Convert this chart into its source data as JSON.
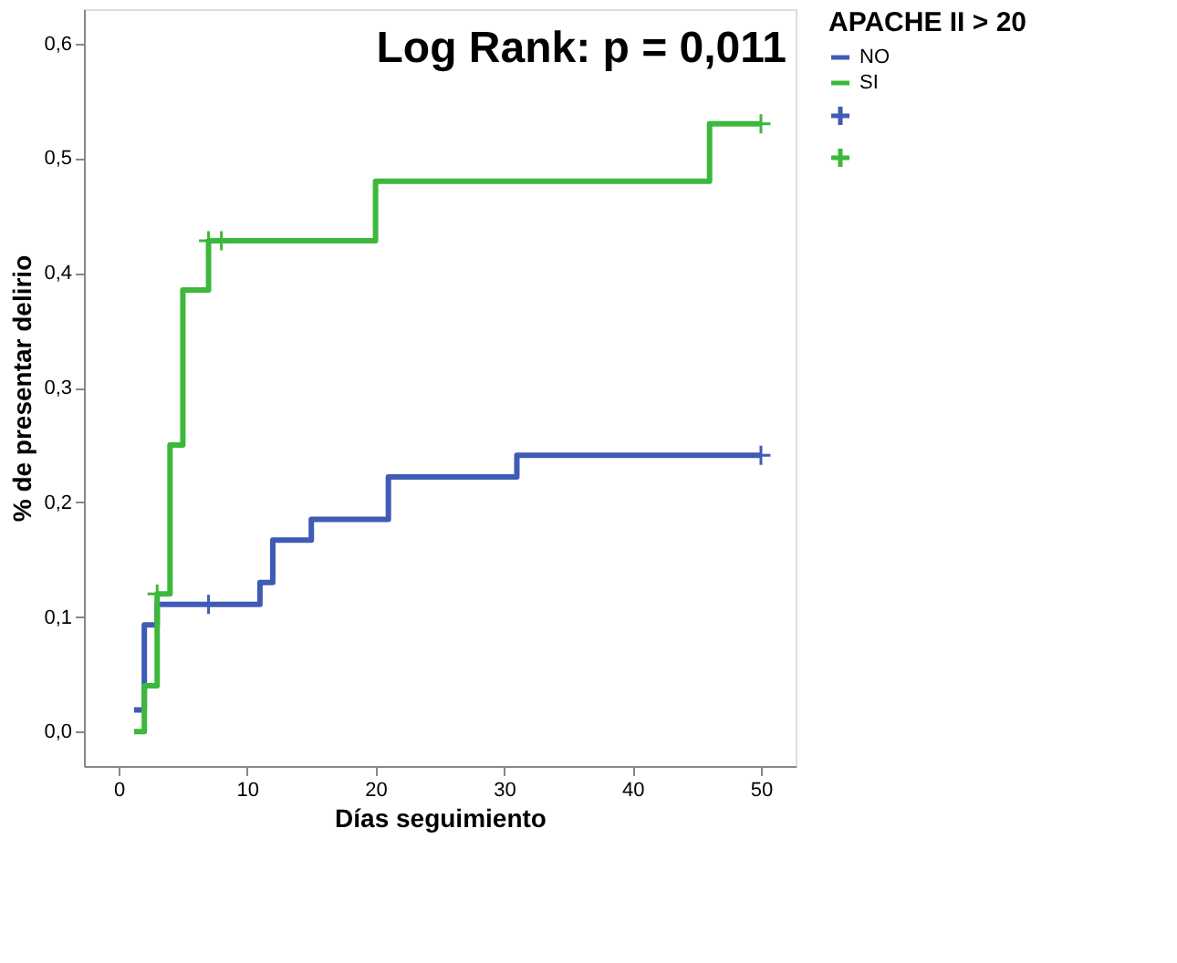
{
  "chart_data": {
    "type": "step",
    "xlabel": "Días seguimiento",
    "ylabel": "% de presentar delirio",
    "legend_title": "APACHE II > 20",
    "legend": "right",
    "grid": false,
    "annotations": [
      "Log Rank: p = 0,011"
    ],
    "xlim": [
      -2.7,
      52.7
    ],
    "xticks": [
      0,
      10,
      20,
      30,
      40,
      50
    ],
    "ylim": [
      -0.03,
      0.63
    ],
    "yticks": [
      {
        "value": 0,
        "label": "0,0"
      },
      {
        "value": 0.1,
        "label": "0,1"
      },
      {
        "value": 0.2,
        "label": "0,2"
      },
      {
        "value": 0.3,
        "label": "0,3"
      },
      {
        "value": 0.4,
        "label": "0,4"
      },
      {
        "value": 0.5,
        "label": "0,5"
      },
      {
        "value": 0.6,
        "label": "0,6"
      }
    ],
    "series": [
      {
        "name": "NO",
        "color": "#3f5bb5",
        "x": [
          1.2,
          2,
          3,
          11,
          12,
          15,
          21,
          31,
          50
        ],
        "values": [
          0.019,
          0.093,
          0.111,
          0.13,
          0.167,
          0.185,
          0.222,
          0.241,
          0.241
        ]
      },
      {
        "name": "SI",
        "color": "#3cb83c",
        "x": [
          1.2,
          2,
          3,
          4,
          5,
          7,
          20,
          46,
          50
        ],
        "values": [
          0,
          0.04,
          0.12,
          0.25,
          0.385,
          0.428,
          0.48,
          0.53,
          0.53
        ]
      },
      {
        "color": "#3f5bb5",
        "type": "scatter",
        "marker": "cross",
        "x": [
          7,
          50
        ],
        "values": [
          0.111,
          0.241
        ]
      },
      {
        "color": "#3cb83c",
        "type": "scatter",
        "marker": "cross",
        "x": [
          3,
          7,
          8,
          50
        ],
        "values": [
          0.12,
          0.428,
          0.428,
          0.53
        ]
      }
    ]
  }
}
